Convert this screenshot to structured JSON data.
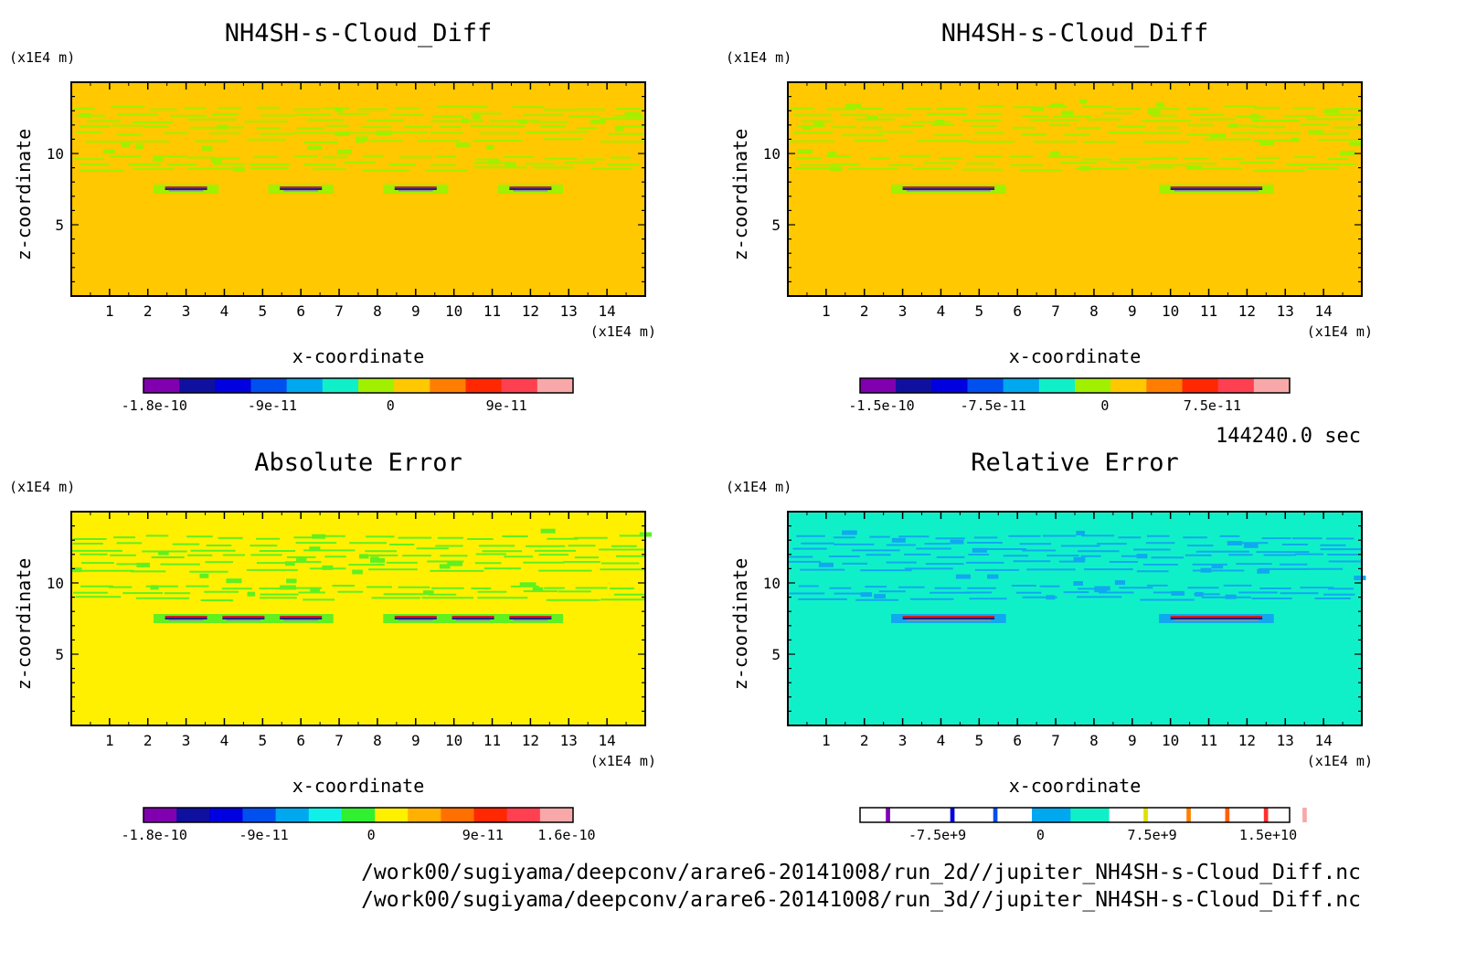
{
  "time_label": "144240.0 sec",
  "file_paths": [
    "/work00/sugiyama/deepconv/arare6-20141008/run_2d//jupiter_NH4SH-s-Cloud_Diff.nc",
    "/work00/sugiyama/deepconv/arare6-20141008/run_3d//jupiter_NH4SH-s-Cloud_Diff.nc"
  ],
  "chart_data": [
    {
      "type": "heatmap",
      "title": "NH4SH-s-Cloud_Diff",
      "xlabel": "x-coordinate",
      "ylabel": "z-coordinate",
      "x_unit": "(x1E4 m)",
      "y_unit": "(x1E4 m)",
      "x_ticks": [
        "1",
        "2",
        "3",
        "4",
        "5",
        "6",
        "7",
        "8",
        "9",
        "10",
        "11",
        "12",
        "13",
        "14"
      ],
      "y_ticks": [
        "5",
        "10"
      ],
      "xlim": [
        0,
        15
      ],
      "ylim": [
        0,
        15
      ],
      "background": "#ffc800",
      "bands_color": "#a0f000",
      "features_x": [
        3,
        6,
        9,
        12
      ],
      "feature_z": 7.5,
      "colorbar": {
        "colors": [
          "#8000b0",
          "#1010a0",
          "#0000e0",
          "#0050f0",
          "#00a8f0",
          "#10f0c8",
          "#a0f000",
          "#ffc800",
          "#ff7d00",
          "#ff2800",
          "#ff4050",
          "#f8a8a8"
        ],
        "labels": [
          "-1.8e-10",
          "-9e-11",
          "0",
          "9e-11"
        ]
      }
    },
    {
      "type": "heatmap",
      "title": "NH4SH-s-Cloud_Diff",
      "xlabel": "x-coordinate",
      "ylabel": "z-coordinate",
      "x_unit": "(x1E4 m)",
      "y_unit": "(x1E4 m)",
      "x_ticks": [
        "1",
        "2",
        "3",
        "4",
        "5",
        "6",
        "7",
        "8",
        "9",
        "10",
        "11",
        "12",
        "13",
        "14"
      ],
      "y_ticks": [
        "5",
        "10"
      ],
      "xlim": [
        0,
        15
      ],
      "ylim": [
        0,
        15
      ],
      "background": "#ffc800",
      "bands_color": "#a0f000",
      "features_x": [
        4.2,
        11.2
      ],
      "feature_z": 7.5,
      "colorbar": {
        "colors": [
          "#8000b0",
          "#1010a0",
          "#0000e0",
          "#0050f0",
          "#00a8f0",
          "#10f0c8",
          "#a0f000",
          "#ffc800",
          "#ff7d00",
          "#ff2800",
          "#ff4050",
          "#f8a8a8"
        ],
        "labels": [
          "-1.5e-10",
          "-7.5e-11",
          "0",
          "7.5e-11"
        ]
      }
    },
    {
      "type": "heatmap",
      "title": "Absolute Error",
      "xlabel": "x-coordinate",
      "ylabel": "z-coordinate",
      "x_unit": "(x1E4 m)",
      "y_unit": "(x1E4 m)",
      "x_ticks": [
        "1",
        "2",
        "3",
        "4",
        "5",
        "6",
        "7",
        "8",
        "9",
        "10",
        "11",
        "12",
        "13",
        "14"
      ],
      "y_ticks": [
        "5",
        "10"
      ],
      "xlim": [
        0,
        15
      ],
      "ylim": [
        0,
        15
      ],
      "background": "#fff000",
      "bands_color": "#60f020",
      "features_x": [
        3,
        4.5,
        6,
        9,
        10.5,
        12
      ],
      "feature_z": 7.5,
      "colorbar": {
        "colors": [
          "#8000b0",
          "#1010a0",
          "#0000e0",
          "#0050f0",
          "#00a8f0",
          "#10f0e8",
          "#30f030",
          "#fff000",
          "#ffb000",
          "#ff7000",
          "#ff2800",
          "#ff4050",
          "#f8a8a8"
        ],
        "labels": [
          "-1.8e-10",
          "-9e-11",
          "0",
          "9e-11",
          "1.6e-10"
        ]
      }
    },
    {
      "type": "heatmap",
      "title": "Relative Error",
      "xlabel": "x-coordinate",
      "ylabel": "z-coordinate",
      "x_unit": "(x1E4 m)",
      "y_unit": "(x1E4 m)",
      "x_ticks": [
        "1",
        "2",
        "3",
        "4",
        "5",
        "6",
        "7",
        "8",
        "9",
        "10",
        "11",
        "12",
        "13",
        "14"
      ],
      "y_ticks": [
        "5",
        "10"
      ],
      "xlim": [
        0,
        15
      ],
      "ylim": [
        0,
        15
      ],
      "background": "#10f0c8",
      "bands_color": "#10a8f0",
      "features_x": [
        4.2,
        11.2
      ],
      "feature_z": 7.5,
      "colorbar": {
        "colors": [
          "#ffffff",
          "#8000b0",
          "#ffffff",
          "#0000e0",
          "#ffffff",
          "#0050f0",
          "#ffffff",
          "#00a8f0",
          "#10f0c8",
          "#ffffff",
          "#e0e000",
          "#ffffff",
          "#ff8000",
          "#ffffff",
          "#ff6000",
          "#ffffff",
          "#ff3030",
          "#ffffff",
          "#f8a8a8",
          "#ffffff"
        ],
        "colors_widths": [
          0.06,
          0.01,
          0.14,
          0.01,
          0.09,
          0.01,
          0.08,
          0.09,
          0.09,
          0.08,
          0.01,
          0.09,
          0.01,
          0.08,
          0.01,
          0.08,
          0.01,
          0.08,
          0.01,
          0.05
        ],
        "labels": [
          "-7.5e+9",
          "0",
          "7.5e+9",
          "1.5e+10"
        ]
      }
    }
  ]
}
